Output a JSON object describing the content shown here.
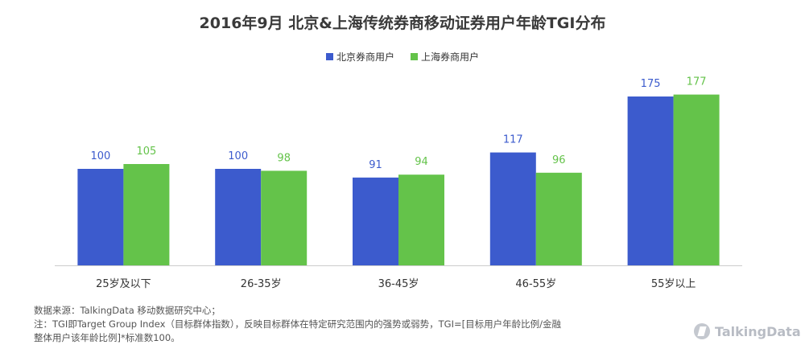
{
  "title": "2016年9月  北京&上海传统券商移动证券用户年龄TGI分布",
  "colors": {
    "beijing": "#3c5bcd",
    "shanghai": "#64c34a",
    "axis": "#cccccc"
  },
  "chart_data": {
    "type": "bar",
    "title": "2016年9月  北京&上海传统券商移动证券用户年龄TGI分布",
    "categories": [
      "25岁及以下",
      "26-35岁",
      "36-45岁",
      "46-55岁",
      "55岁以上"
    ],
    "series": [
      {
        "name": "北京券商用户",
        "values": [
          100,
          100,
          91,
          117,
          175
        ]
      },
      {
        "name": "上海券商用户",
        "values": [
          105,
          98,
          94,
          96,
          177
        ]
      }
    ],
    "ylim": [
      0,
      200
    ],
    "grid": false,
    "legend": "top-center",
    "xlabel": "",
    "ylabel": ""
  },
  "footnote": {
    "line1": "数据来源：TalkingData 移动数据研究中心；",
    "line2": "注：TGI即Target Group Index（目标群体指数），反映目标群体在特定研究范围内的强势或弱势，TGI=[目标用户年龄比例/金融",
    "line3": "整体用户该年龄比例]*标准数100。"
  },
  "logo": {
    "text": "TalkingData",
    "icon": "talkingdata-logo-icon"
  }
}
